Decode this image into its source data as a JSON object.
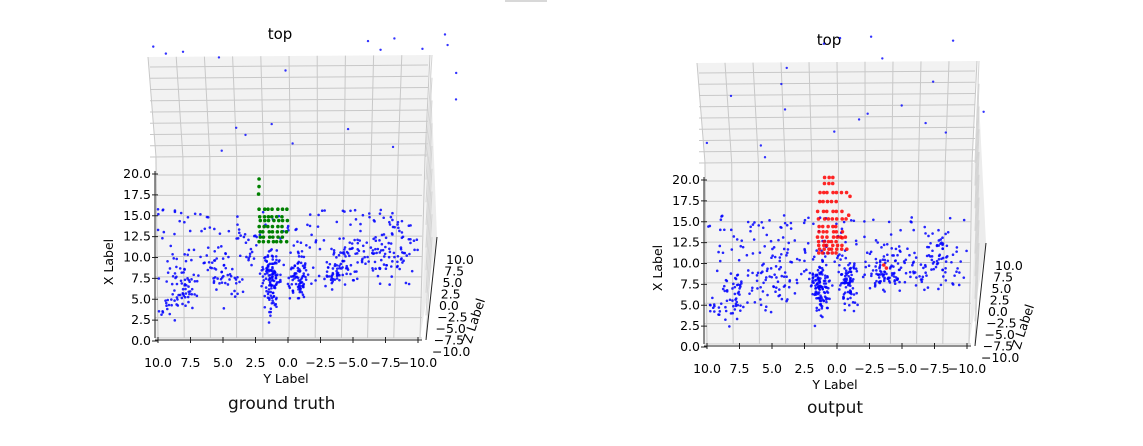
{
  "figure": {
    "captions": [
      "ground truth",
      "output"
    ]
  },
  "chart_data": [
    {
      "type": "scatter3d",
      "title": "top",
      "xlabel": "X Label",
      "ylabel": "Y Label",
      "zlabel": "Z Label",
      "xlim": [
        0,
        20
      ],
      "ylim": [
        -10,
        10
      ],
      "zlim": [
        -10,
        10
      ],
      "x_ticks": [
        "0.0",
        "2.5",
        "5.0",
        "7.5",
        "10.0",
        "12.5",
        "15.0",
        "17.5",
        "20.0"
      ],
      "y_ticks": [
        "10.0",
        "7.5",
        "5.0",
        "2.5",
        "0.0",
        "−2.5",
        "−5.0",
        "−7.5",
        "−10.0"
      ],
      "z_ticks": [
        "10.0",
        "7.5",
        "5.0",
        "2.5",
        "0.0",
        "−2.5",
        "−5.0",
        "−7.5",
        "−10.0"
      ],
      "view": "top",
      "grid": true,
      "series": [
        {
          "color": "#0000ff",
          "marker_size": 1.3,
          "count": 650
        },
        {
          "color": "#008000",
          "marker_size": 1.8,
          "count": 62
        }
      ]
    },
    {
      "type": "scatter3d",
      "title": "top",
      "xlabel": "X Label",
      "ylabel": "Y Label",
      "zlabel": "Z Label",
      "xlim": [
        0,
        20
      ],
      "ylim": [
        -10,
        10
      ],
      "zlim": [
        -10,
        10
      ],
      "x_ticks": [
        "0.0",
        "2.5",
        "5.0",
        "7.5",
        "10.0",
        "12.5",
        "15.0",
        "17.5",
        "20.0"
      ],
      "y_ticks": [
        "10.0",
        "7.5",
        "5.0",
        "2.5",
        "0.0",
        "−2.5",
        "−5.0",
        "−7.5",
        "−10.0"
      ],
      "z_ticks": [
        "10.0",
        "7.5",
        "5.0",
        "2.5",
        "0.0",
        "−2.5",
        "−5.0",
        "−7.5",
        "−10.0"
      ],
      "view": "top",
      "grid": true,
      "series": [
        {
          "color": "#0000ff",
          "marker_size": 1.3,
          "count": 650
        },
        {
          "color": "#ff0000",
          "marker_size": 1.8,
          "count": 70
        }
      ]
    }
  ]
}
